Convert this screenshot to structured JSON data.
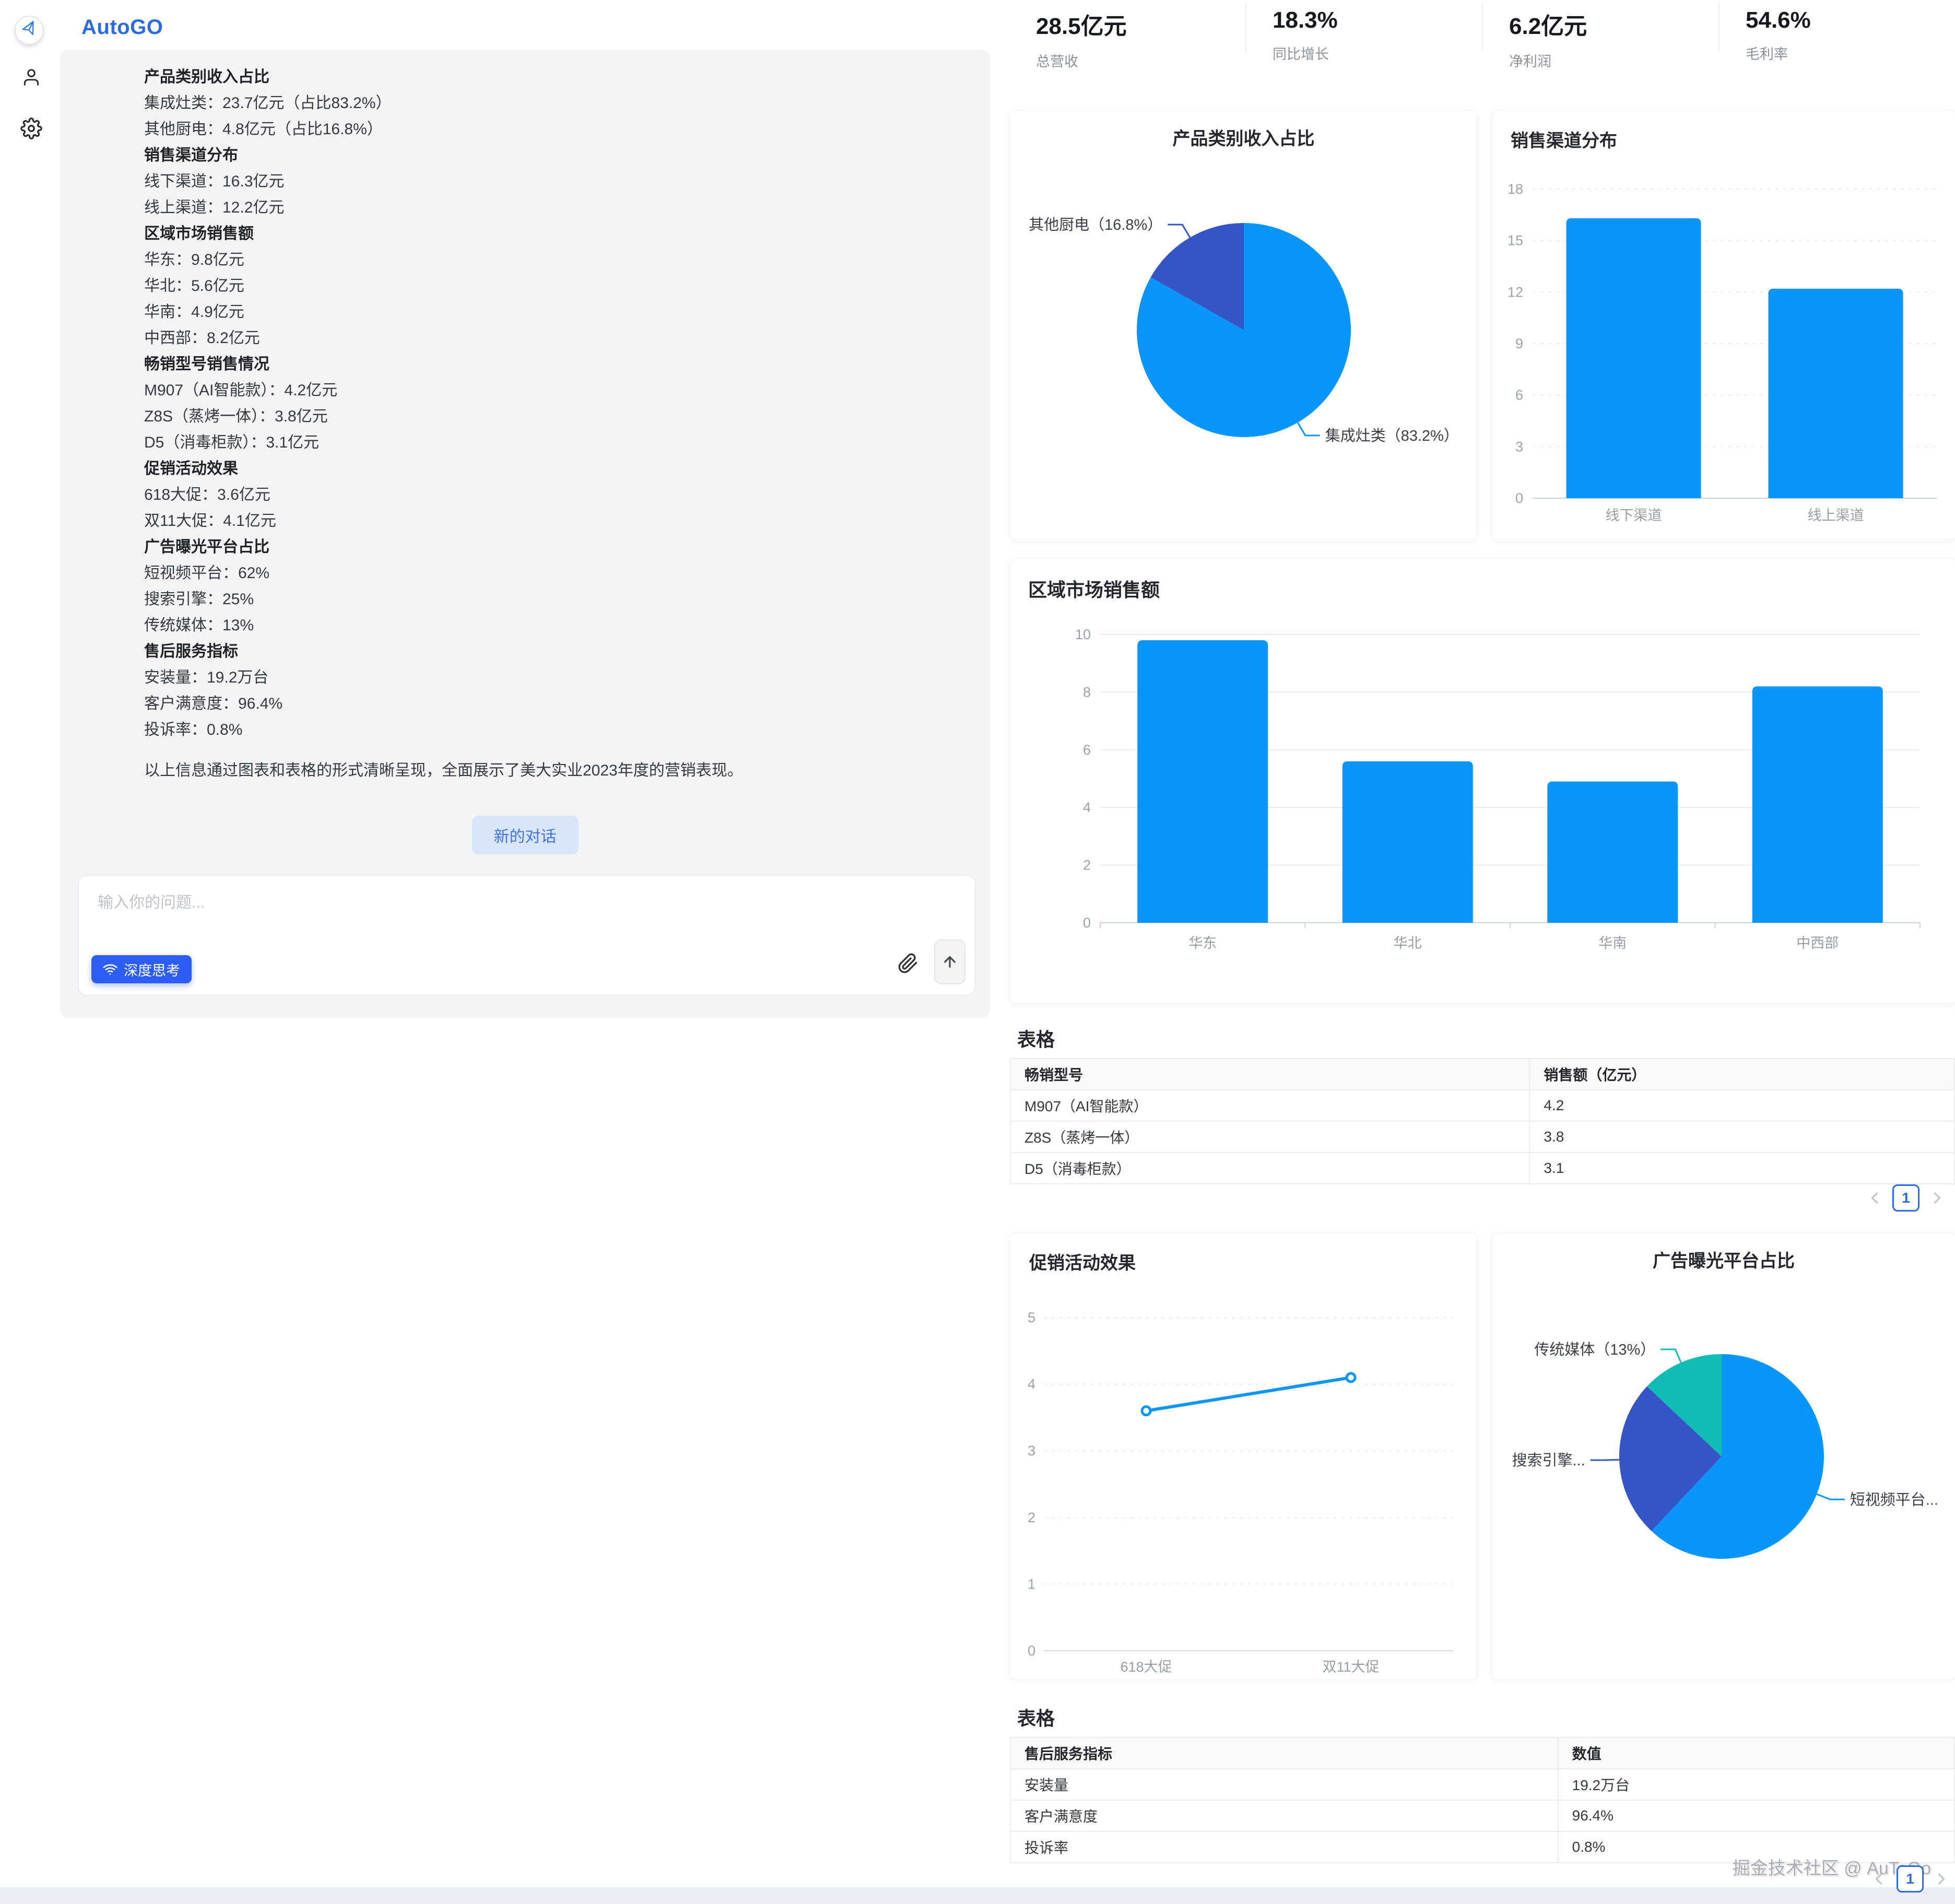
{
  "brand": {
    "name": "AutoGO"
  },
  "chat": {
    "lines": [
      {
        "text": "产品类别收入占比",
        "bold": true
      },
      {
        "text": "集成灶类：23.7亿元（占比83.2%）"
      },
      {
        "text": "其他厨电：4.8亿元（占比16.8%）"
      },
      {
        "text": "销售渠道分布",
        "bold": true
      },
      {
        "text": "线下渠道：16.3亿元"
      },
      {
        "text": "线上渠道：12.2亿元"
      },
      {
        "text": "区域市场销售额",
        "bold": true
      },
      {
        "text": "华东：9.8亿元"
      },
      {
        "text": "华北：5.6亿元"
      },
      {
        "text": "华南：4.9亿元"
      },
      {
        "text": "中西部：8.2亿元"
      },
      {
        "text": "畅销型号销售情况",
        "bold": true
      },
      {
        "text": "M907（AI智能款）：4.2亿元"
      },
      {
        "text": "Z8S（蒸烤一体）：3.8亿元"
      },
      {
        "text": "D5（消毒柜款）：3.1亿元"
      },
      {
        "text": "促销活动效果",
        "bold": true
      },
      {
        "text": "618大促：3.6亿元"
      },
      {
        "text": "双11大促：4.1亿元"
      },
      {
        "text": "广告曝光平台占比",
        "bold": true
      },
      {
        "text": "短视频平台：62%"
      },
      {
        "text": "搜索引擎：25%"
      },
      {
        "text": "传统媒体：13%"
      },
      {
        "text": "售后服务指标",
        "bold": true
      },
      {
        "text": "安装量：19.2万台"
      },
      {
        "text": "客户满意度：96.4%"
      },
      {
        "text": "投诉率：0.8%"
      }
    ],
    "summary": "以上信息通过图表和表格的形式清晰呈现，全面展示了美大实业2023年度的营销表现。",
    "new_chat_label": "新的对话",
    "input_placeholder": "输入你的问题...",
    "deep_think_label": "深度思考"
  },
  "kpis": [
    {
      "value": "28.5亿元",
      "label": "总营收"
    },
    {
      "value": "18.3%",
      "label": "同比增长"
    },
    {
      "value": "6.2亿元",
      "label": "净利润"
    },
    {
      "value": "54.6%",
      "label": "毛利率"
    }
  ],
  "chart_data": [
    {
      "id": "product-revenue-pie",
      "type": "pie",
      "title": "产品类别收入占比",
      "slices": [
        {
          "label": "集成灶类",
          "value": 23.7,
          "pct": 83.2,
          "display": "集成灶类（83.2%）"
        },
        {
          "label": "其他厨电",
          "value": 4.8,
          "pct": 16.8,
          "display": "其他厨电（16.8%）"
        }
      ],
      "colors": [
        "#0a95fb",
        "#3355c5"
      ],
      "legend_position": "none"
    },
    {
      "id": "sales-channel-bar",
      "type": "bar",
      "title": "销售渠道分布",
      "categories": [
        "线下渠道",
        "线上渠道"
      ],
      "values": [
        16.3,
        12.2
      ],
      "ylim": [
        0,
        18
      ],
      "yticks": [
        0,
        3,
        6,
        9,
        12,
        15,
        18
      ],
      "grid": "dashed",
      "unit": "亿元"
    },
    {
      "id": "region-sales-bar",
      "type": "bar",
      "title": "区域市场销售额",
      "categories": [
        "华东",
        "华北",
        "华南",
        "中西部"
      ],
      "values": [
        9.8,
        5.6,
        4.9,
        8.2
      ],
      "ylim": [
        0,
        10
      ],
      "yticks": [
        0,
        2,
        4,
        6,
        8,
        10
      ],
      "grid": "solid",
      "unit": "亿元"
    },
    {
      "id": "promo-effect-line",
      "type": "line",
      "title": "促销活动效果",
      "categories": [
        "618大促",
        "双11大促"
      ],
      "values": [
        3.6,
        4.1
      ],
      "ylim": [
        0,
        5
      ],
      "yticks": [
        0,
        1,
        2,
        3,
        4,
        5
      ],
      "grid": "dashed",
      "unit": "亿元"
    },
    {
      "id": "ad-platform-pie",
      "type": "pie",
      "title": "广告曝光平台占比",
      "slices": [
        {
          "label": "短视频平台",
          "pct": 62,
          "display": "短视频平台..."
        },
        {
          "label": "搜索引擎",
          "pct": 25,
          "display": "搜索引擎..."
        },
        {
          "label": "传统媒体",
          "pct": 13,
          "display": "传统媒体（13%）"
        }
      ],
      "colors": [
        "#0a95fb",
        "#3355c5",
        "#0fbdb5"
      ],
      "legend_position": "none"
    }
  ],
  "tables": [
    {
      "section_title": "表格",
      "headers": [
        "畅销型号",
        "销售额（亿元）"
      ],
      "rows": [
        [
          "M907（AI智能款）",
          "4.2"
        ],
        [
          "Z8S（蒸烤一体）",
          "3.8"
        ],
        [
          "D5（消毒柜款）",
          "3.1"
        ]
      ]
    },
    {
      "section_title": "表格",
      "headers": [
        "售后服务指标",
        "数值"
      ],
      "rows": [
        [
          "安装量",
          "19.2万台"
        ],
        [
          "客户满意度",
          "96.4%"
        ],
        [
          "投诉率",
          "0.8%"
        ]
      ]
    }
  ],
  "pagination": {
    "current_page": "1"
  },
  "watermark": "掘金技术社区 @ AuToGo",
  "colors": {
    "primary_blue": "#0a95fb",
    "dark_blue": "#3355c5",
    "teal": "#0fbdb5",
    "brand_blue": "#2c6ae2"
  }
}
